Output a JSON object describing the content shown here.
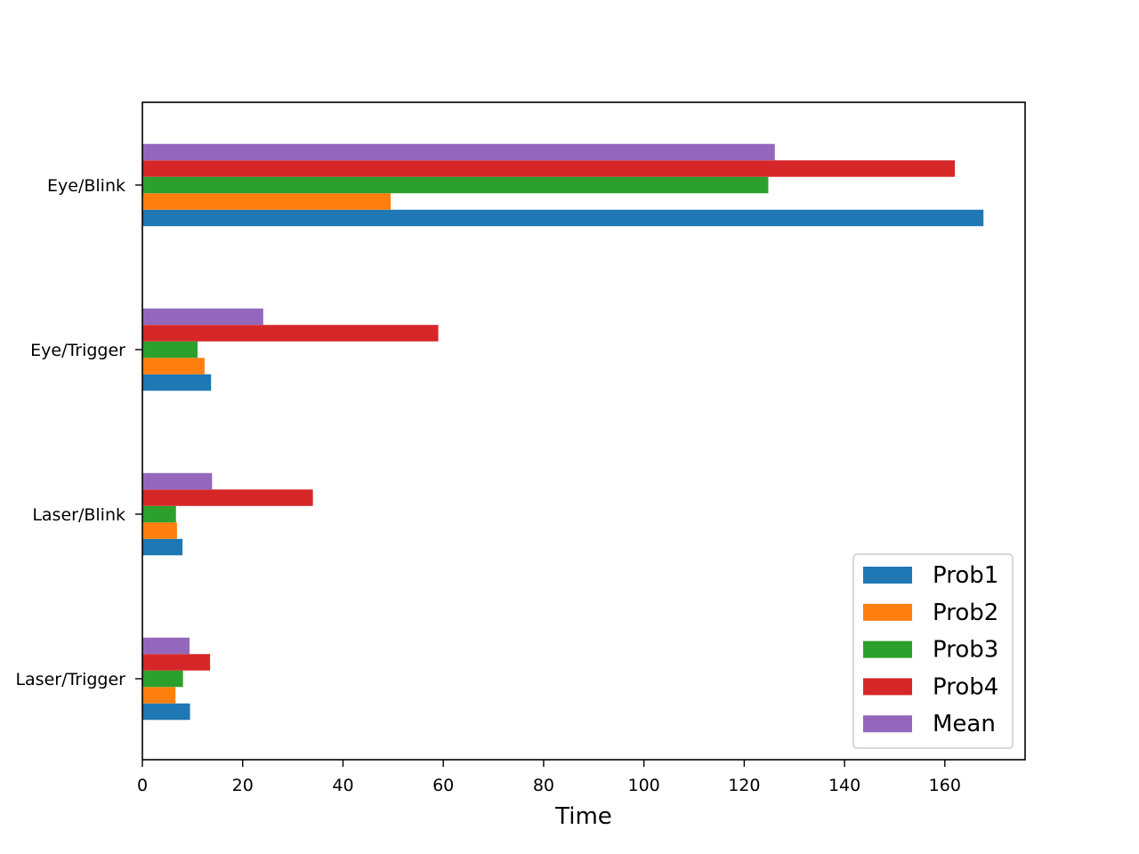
{
  "chart_data": {
    "type": "bar",
    "orientation": "horizontal",
    "title": "",
    "xlabel": "Time",
    "ylabel": "",
    "xlim": [
      0,
      176
    ],
    "xticks": [
      0,
      20,
      40,
      60,
      80,
      100,
      120,
      140,
      160
    ],
    "grid": false,
    "legend_position": "lower-right",
    "categories": [
      "Laser/Trigger",
      "Laser/Blink",
      "Eye/Trigger",
      "Eye/Blink"
    ],
    "series": [
      {
        "name": "Prob1",
        "color": "#1f77b4",
        "values": [
          9.5,
          8.0,
          13.7,
          167.7
        ]
      },
      {
        "name": "Prob2",
        "color": "#ff7f0e",
        "values": [
          6.6,
          6.9,
          12.4,
          49.5
        ]
      },
      {
        "name": "Prob3",
        "color": "#2ca02c",
        "values": [
          8.1,
          6.7,
          11.0,
          124.8
        ]
      },
      {
        "name": "Prob4",
        "color": "#d62728",
        "values": [
          13.5,
          34.0,
          59.0,
          162.0
        ]
      },
      {
        "name": "Mean",
        "color": "#9467bd",
        "values": [
          9.4,
          13.9,
          24.1,
          126.1
        ]
      }
    ]
  }
}
